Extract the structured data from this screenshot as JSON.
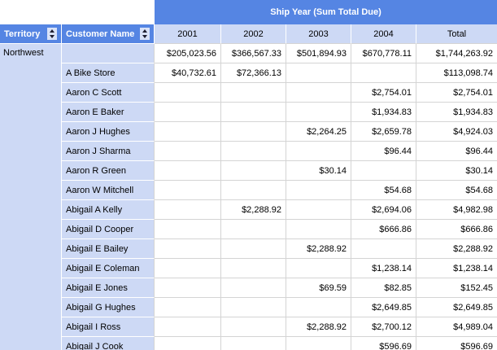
{
  "report": {
    "banner_title": "Ship Year (Sum Total Due)",
    "header": {
      "territory_label": "Territory",
      "customer_label": "Customer Name",
      "year_columns": [
        "2001",
        "2002",
        "2003",
        "2004"
      ],
      "total_label": "Total"
    },
    "territory_group": "Northwest",
    "rows": [
      {
        "customer": "",
        "values": [
          "$205,023.56",
          "$366,567.33",
          "$501,894.93",
          "$670,778.11",
          "$1,744,263.92"
        ]
      },
      {
        "customer": "A Bike Store",
        "values": [
          "$40,732.61",
          "$72,366.13",
          "",
          "",
          "$113,098.74"
        ]
      },
      {
        "customer": "Aaron C Scott",
        "values": [
          "",
          "",
          "",
          "$2,754.01",
          "$2,754.01"
        ]
      },
      {
        "customer": "Aaron E Baker",
        "values": [
          "",
          "",
          "",
          "$1,934.83",
          "$1,934.83"
        ]
      },
      {
        "customer": "Aaron J Hughes",
        "values": [
          "",
          "",
          "$2,264.25",
          "$2,659.78",
          "$4,924.03"
        ]
      },
      {
        "customer": "Aaron J Sharma",
        "values": [
          "",
          "",
          "",
          "$96.44",
          "$96.44"
        ]
      },
      {
        "customer": "Aaron R Green",
        "values": [
          "",
          "",
          "$30.14",
          "",
          "$30.14"
        ]
      },
      {
        "customer": "Aaron W Mitchell",
        "values": [
          "",
          "",
          "",
          "$54.68",
          "$54.68"
        ]
      },
      {
        "customer": "Abigail A Kelly",
        "values": [
          "",
          "$2,288.92",
          "",
          "$2,694.06",
          "$4,982.98"
        ]
      },
      {
        "customer": "Abigail D Cooper",
        "values": [
          "",
          "",
          "",
          "$666.86",
          "$666.86"
        ]
      },
      {
        "customer": "Abigail E Bailey",
        "values": [
          "",
          "",
          "$2,288.92",
          "",
          "$2,288.92"
        ]
      },
      {
        "customer": "Abigail E Coleman",
        "values": [
          "",
          "",
          "",
          "$1,238.14",
          "$1,238.14"
        ]
      },
      {
        "customer": "Abigail E Jones",
        "values": [
          "",
          "",
          "$69.59",
          "$82.85",
          "$152.45"
        ]
      },
      {
        "customer": "Abigail G Hughes",
        "values": [
          "",
          "",
          "",
          "$2,649.85",
          "$2,649.85"
        ]
      },
      {
        "customer": "Abigail I Ross",
        "values": [
          "",
          "",
          "$2,288.92",
          "$2,700.12",
          "$4,989.04"
        ]
      },
      {
        "customer": "Abigail J Cook",
        "values": [
          "",
          "",
          "",
          "$596.69",
          "$596.69"
        ]
      }
    ],
    "colors": {
      "header_blue": "#5585e3",
      "light_blue": "#cdd9f5",
      "grid_line": "#d4d4d4",
      "header_text": "#ffffff",
      "body_text": "#000000"
    }
  }
}
